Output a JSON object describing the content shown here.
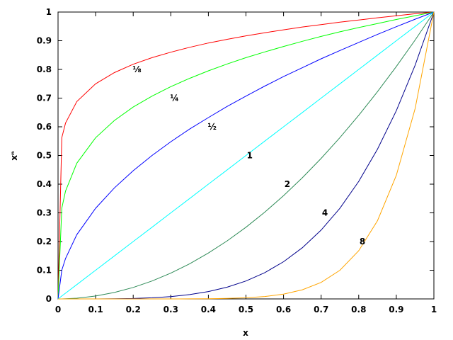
{
  "chart_data": {
    "type": "line",
    "xlabel": "x",
    "ylabel": "xⁿ",
    "xlim": [
      0,
      1
    ],
    "ylim": [
      0,
      1
    ],
    "grid": false,
    "legend": "inline labels",
    "x_ticks": [
      "0",
      "0.1",
      "0.2",
      "0.3",
      "0.4",
      "0.5",
      "0.6",
      "0.7",
      "0.8",
      "0.9",
      "1"
    ],
    "y_ticks": [
      "0",
      "0.1",
      "0.2",
      "0.3",
      "0.4",
      "0.5",
      "0.6",
      "0.7",
      "0.8",
      "0.9",
      "1"
    ],
    "x": [
      0,
      0.01,
      0.02,
      0.05,
      0.1,
      0.15,
      0.2,
      0.25,
      0.3,
      0.35,
      0.4,
      0.45,
      0.5,
      0.55,
      0.6,
      0.65,
      0.7,
      0.75,
      0.8,
      0.85,
      0.9,
      0.95,
      1
    ],
    "series": [
      {
        "name": "⅛",
        "color": "#ff0000",
        "values": [
          0,
          0.562,
          0.613,
          0.688,
          0.75,
          0.789,
          0.818,
          0.841,
          0.86,
          0.877,
          0.892,
          0.905,
          0.917,
          0.928,
          0.938,
          0.948,
          0.956,
          0.965,
          0.972,
          0.98,
          0.987,
          0.994,
          1
        ]
      },
      {
        "name": "¼",
        "color": "#00ff00",
        "values": [
          0,
          0.316,
          0.376,
          0.473,
          0.562,
          0.622,
          0.669,
          0.707,
          0.74,
          0.769,
          0.795,
          0.819,
          0.841,
          0.861,
          0.88,
          0.898,
          0.915,
          0.931,
          0.946,
          0.96,
          0.974,
          0.987,
          1
        ]
      },
      {
        "name": "½",
        "color": "#0000ff",
        "values": [
          0,
          0.1,
          0.141,
          0.224,
          0.316,
          0.387,
          0.447,
          0.5,
          0.548,
          0.592,
          0.632,
          0.671,
          0.707,
          0.742,
          0.775,
          0.806,
          0.837,
          0.866,
          0.894,
          0.922,
          0.949,
          0.975,
          1
        ]
      },
      {
        "name": "1",
        "color": "#00ffff",
        "values": [
          0,
          0.01,
          0.02,
          0.05,
          0.1,
          0.15,
          0.2,
          0.25,
          0.3,
          0.35,
          0.4,
          0.45,
          0.5,
          0.55,
          0.6,
          0.65,
          0.7,
          0.75,
          0.8,
          0.85,
          0.9,
          0.95,
          1
        ]
      },
      {
        "name": "2",
        "color": "#2e8b57",
        "values": [
          0,
          0.0001,
          0.0004,
          0.0025,
          0.01,
          0.0225,
          0.04,
          0.0625,
          0.09,
          0.1225,
          0.16,
          0.2025,
          0.25,
          0.3025,
          0.36,
          0.4225,
          0.49,
          0.5625,
          0.64,
          0.7225,
          0.81,
          0.9025,
          1
        ]
      },
      {
        "name": "4",
        "color": "#00008b",
        "values": [
          0,
          0,
          0,
          0,
          0.0001,
          0.0005,
          0.0016,
          0.0039,
          0.0081,
          0.015,
          0.0256,
          0.041,
          0.0625,
          0.0915,
          0.1296,
          0.1785,
          0.2401,
          0.3164,
          0.4096,
          0.522,
          0.6561,
          0.8145,
          1
        ]
      },
      {
        "name": "8",
        "color": "#ffa500",
        "values": [
          0,
          0,
          0,
          0,
          0,
          0,
          0,
          0,
          0.0001,
          0.0002,
          0.0007,
          0.0017,
          0.0039,
          0.0084,
          0.0168,
          0.0319,
          0.0576,
          0.1001,
          0.1678,
          0.2725,
          0.4305,
          0.6634,
          1
        ]
      }
    ]
  }
}
